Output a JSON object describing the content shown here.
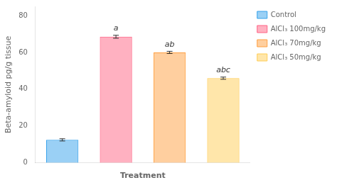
{
  "chart_data": {
    "type": "bar",
    "categories": [
      "Control",
      "AlCl₃ 100mg/kg",
      "AlCl₃ 70mg/kg",
      "AlCl₃ 50mg/kg"
    ],
    "values": [
      12.5,
      68.5,
      60.0,
      46.0
    ],
    "errors": [
      0.6,
      0.8,
      0.6,
      0.6
    ],
    "annotations": [
      null,
      "a",
      "ab",
      "abc"
    ],
    "xlabel": "Treatment",
    "ylabel": "Beta-amyloid pg/g tissue",
    "ylim": [
      0,
      85
    ],
    "yticks": [
      0,
      20,
      40,
      60,
      80
    ],
    "grid": false,
    "legend": "right",
    "tick_labels": "y"
  }
}
